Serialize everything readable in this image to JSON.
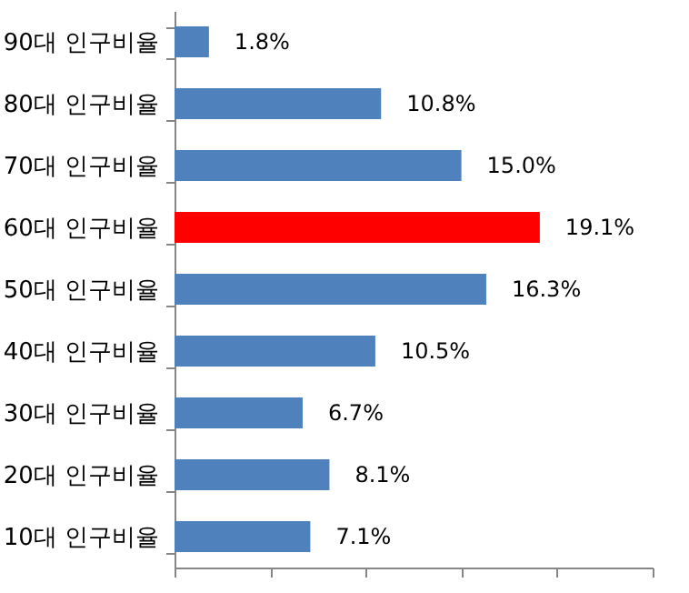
{
  "chart_data": {
    "type": "bar",
    "orientation": "horizontal",
    "categories": [
      "90대 인구비율",
      "80대 인구비율",
      "70대 인구비율",
      "60대 인구비율",
      "50대 인구비율",
      "40대 인구비율",
      "30대 인구비율",
      "20대 인구비율",
      "10대 인구비율"
    ],
    "values": [
      1.8,
      10.8,
      15.0,
      19.1,
      16.3,
      10.5,
      6.7,
      8.1,
      7.1
    ],
    "value_labels": [
      "1.8%",
      "10.8%",
      "15.0%",
      "19.1%",
      "16.3%",
      "10.5%",
      "6.7%",
      "8.1%",
      "7.1%"
    ],
    "colors": [
      "#4f81bd",
      "#4f81bd",
      "#4f81bd",
      "#ff0000",
      "#4f81bd",
      "#4f81bd",
      "#4f81bd",
      "#4f81bd",
      "#4f81bd"
    ],
    "xlim": [
      0,
      25
    ],
    "xticks": [
      {
        "value": 0,
        "label": null
      },
      {
        "value": 5,
        "label": null
      },
      {
        "value": 10,
        "label": null
      },
      {
        "value": 15,
        "label": null
      },
      {
        "value": 20,
        "label": null
      },
      {
        "value": 25,
        "label": null
      }
    ],
    "tick_labels": "y",
    "grid": false
  }
}
